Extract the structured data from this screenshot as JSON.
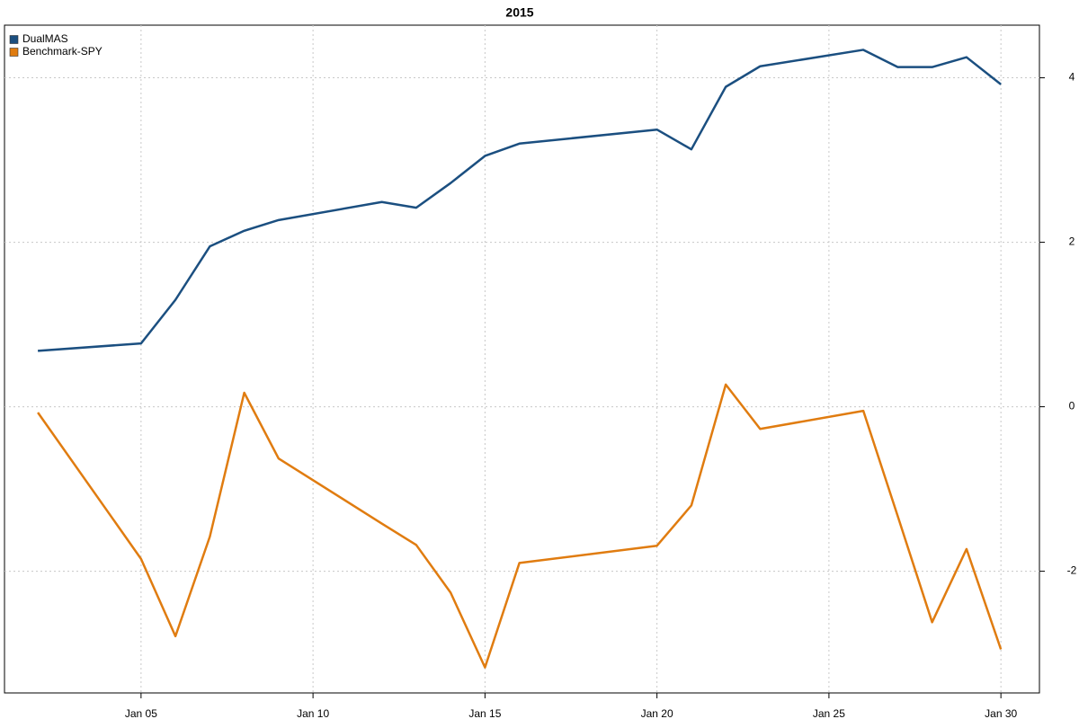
{
  "chart_data": {
    "type": "line",
    "title": "2015",
    "x": [
      2,
      5,
      6,
      7,
      8,
      9,
      12,
      13,
      14,
      15,
      16,
      20,
      21,
      22,
      23,
      26,
      27,
      28,
      29,
      30
    ],
    "series": [
      {
        "name": "DualMAS",
        "color": "#1b4f80",
        "values": [
          0.68,
          0.77,
          1.3,
          1.95,
          2.14,
          2.27,
          2.49,
          2.42,
          2.72,
          3.05,
          3.2,
          3.37,
          3.13,
          3.89,
          4.14,
          4.34,
          4.13,
          4.13,
          4.25,
          3.92
        ]
      },
      {
        "name": "Benchmark-SPY",
        "color": "#e07c10",
        "values": [
          -0.07,
          -1.85,
          -2.79,
          -1.58,
          0.17,
          -0.63,
          -1.42,
          -1.68,
          -2.26,
          -3.17,
          -1.9,
          -1.69,
          -1.2,
          0.27,
          -0.27,
          -0.05,
          -1.33,
          -2.62,
          -1.73,
          -2.95
        ]
      }
    ],
    "xlim": [
      1.03,
      31.12
    ],
    "xticks": [
      {
        "value": 5,
        "label": "Jan 05"
      },
      {
        "value": 10,
        "label": "Jan 10"
      },
      {
        "value": 15,
        "label": "Jan 15"
      },
      {
        "value": 20,
        "label": "Jan 20"
      },
      {
        "value": 25,
        "label": "Jan 25"
      },
      {
        "value": 30,
        "label": "Jan 30"
      }
    ],
    "ylim": [
      -3.48,
      4.64
    ],
    "yticks": [
      -2,
      0,
      2,
      4
    ],
    "grid": true,
    "legend_position": "top-left"
  }
}
